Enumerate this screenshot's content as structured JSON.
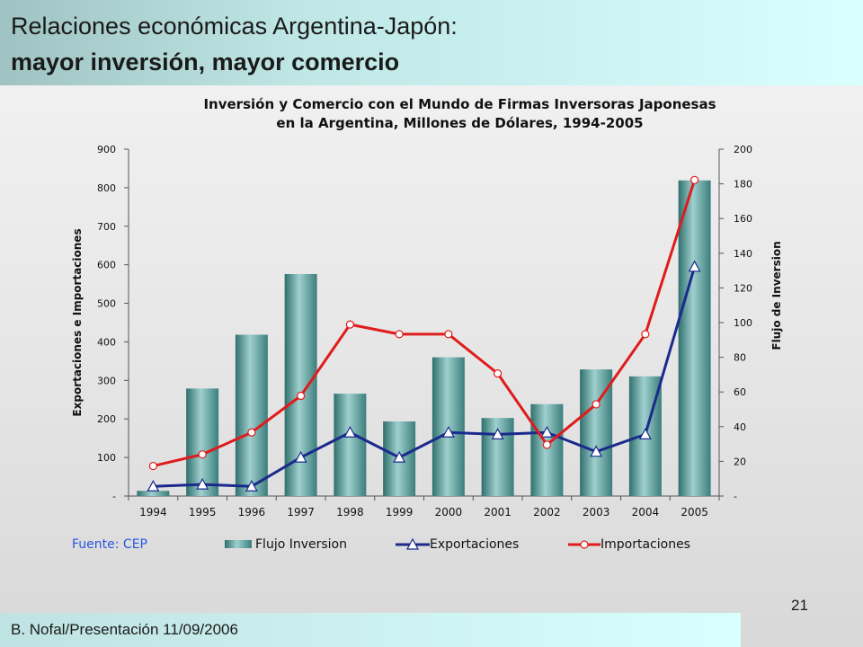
{
  "slide": {
    "title_line1": "Relaciones económicas Argentina-Japón:",
    "title_line2": "mayor inversión, mayor comercio",
    "footer": "B. Nofal/Presentación 11/09/2006",
    "page_number": "21"
  },
  "chart_data": {
    "type": "bar",
    "title": "Inversión y Comercio con el Mundo de Firmas Inversoras Japonesas",
    "subtitle": "en la Argentina, Millones de Dólares, 1994-2005",
    "source": "Fuente: CEP",
    "categories": [
      "1994",
      "1995",
      "1996",
      "1997",
      "1998",
      "1999",
      "2000",
      "2001",
      "2002",
      "2003",
      "2004",
      "2005"
    ],
    "y_left": {
      "label": "Exportaciones e Importaciones",
      "min": 0,
      "max": 900,
      "ticks": [
        "-",
        "100",
        "200",
        "300",
        "400",
        "500",
        "600",
        "700",
        "800",
        "900"
      ]
    },
    "y_right": {
      "label": "Flujo de Inversion",
      "min": 0,
      "max": 200,
      "ticks": [
        "-",
        "20",
        "40",
        "60",
        "80",
        "100",
        "120",
        "140",
        "160",
        "180",
        "200"
      ]
    },
    "series": [
      {
        "name": "Flujo Inversion",
        "type": "bar",
        "axis": "right",
        "color": "#4f9a98",
        "values": [
          3,
          62,
          93,
          128,
          59,
          43,
          80,
          45,
          53,
          73,
          69,
          182
        ]
      },
      {
        "name": "Exportaciones",
        "type": "line",
        "axis": "left",
        "color": "#1b2a8c",
        "marker": "triangle",
        "values": [
          25,
          30,
          25,
          100,
          165,
          100,
          165,
          160,
          165,
          115,
          160,
          595
        ]
      },
      {
        "name": "Importaciones",
        "type": "line",
        "axis": "left",
        "color": "#e01b1b",
        "marker": "circle",
        "values": [
          78,
          108,
          165,
          260,
          445,
          420,
          420,
          318,
          133,
          238,
          420,
          820
        ]
      }
    ],
    "grid": false,
    "legend_position": "bottom"
  }
}
